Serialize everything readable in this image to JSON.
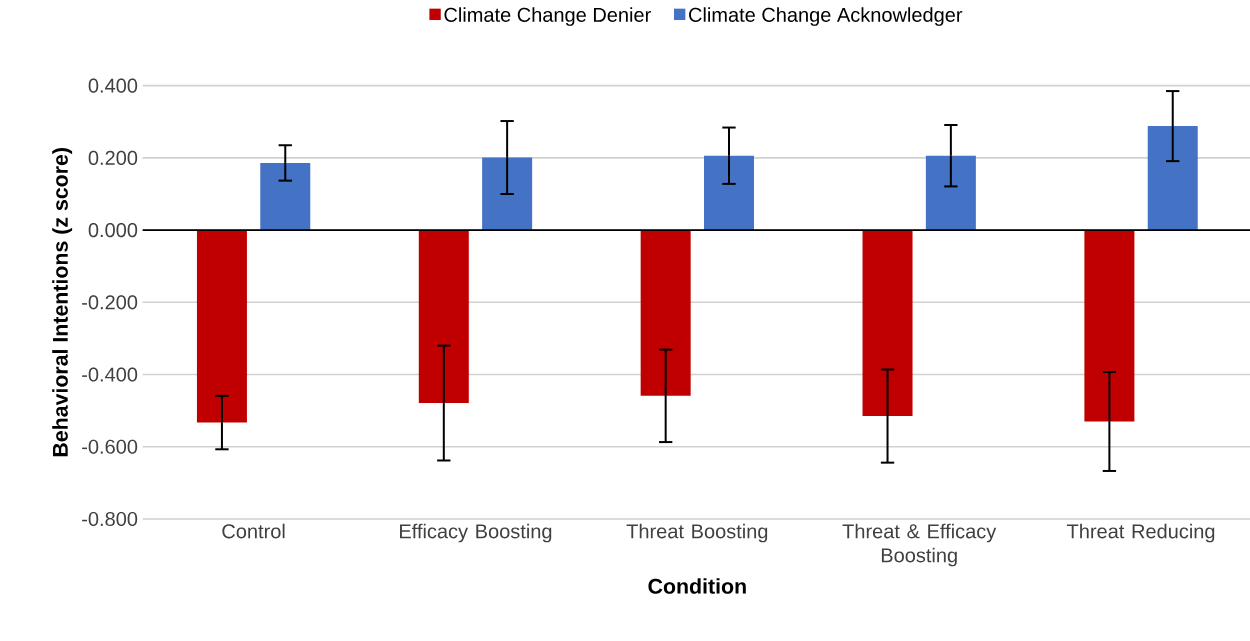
{
  "chart_data": {
    "type": "bar",
    "xlabel": "Condition",
    "ylabel": "Behavioral Intentions (z score)",
    "categories": [
      "Control",
      "Efficacy Boosting",
      "Threat Boosting",
      "Threat & Efficacy Boosting",
      "Threat Reducing"
    ],
    "series": [
      {
        "name": "Climate Change Denier",
        "color": "#c00000",
        "values": [
          -0.533,
          -0.479,
          -0.459,
          -0.515,
          -0.53
        ],
        "errors": [
          0.074,
          0.159,
          0.128,
          0.129,
          0.137
        ]
      },
      {
        "name": "Climate Change Acknowledger",
        "color": "#4472c4",
        "values": [
          0.186,
          0.201,
          0.206,
          0.206,
          0.288
        ],
        "errors": [
          0.049,
          0.101,
          0.078,
          0.085,
          0.097
        ]
      }
    ],
    "ylim": [
      -0.8,
      0.4
    ],
    "yticks": [
      {
        "value": -0.8,
        "label": "-0.800"
      },
      {
        "value": -0.6,
        "label": "-0.600"
      },
      {
        "value": -0.4,
        "label": "-0.400"
      },
      {
        "value": -0.2,
        "label": "-0.200"
      },
      {
        "value": 0,
        "label": "0.000"
      },
      {
        "value": 0.2,
        "label": "0.200"
      },
      {
        "value": 0.4,
        "label": "0.400"
      }
    ],
    "grid": "y",
    "legend": "top"
  }
}
